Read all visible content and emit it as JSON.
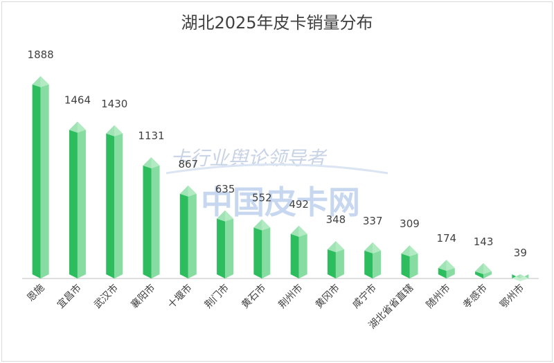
{
  "chart_data": {
    "type": "bar",
    "title": "湖北2025年皮卡销量分布",
    "categories": [
      "恩施",
      "宜昌市",
      "武汉市",
      "襄阳市",
      "十堰市",
      "荆门市",
      "黄石市",
      "荆州市",
      "黄冈市",
      "咸宁市",
      "湖北省省直辖",
      "随州市",
      "孝感市",
      "鄂州市"
    ],
    "values": [
      1888,
      1464,
      1430,
      1131,
      867,
      635,
      552,
      492,
      348,
      337,
      309,
      174,
      143,
      39
    ],
    "xlabel": "",
    "ylabel": "",
    "ylim": [
      0,
      2000
    ],
    "grid": false,
    "legend": "none"
  },
  "watermark": {
    "line1": "卡行业舆论领导者",
    "line2": "中国皮卡网"
  },
  "colors": {
    "bar_dark": "#2dbd5e",
    "bar_light": "#86dca1",
    "bar_top": "#bdeecb",
    "text": "#404040",
    "axis": "#bfbfbf"
  }
}
